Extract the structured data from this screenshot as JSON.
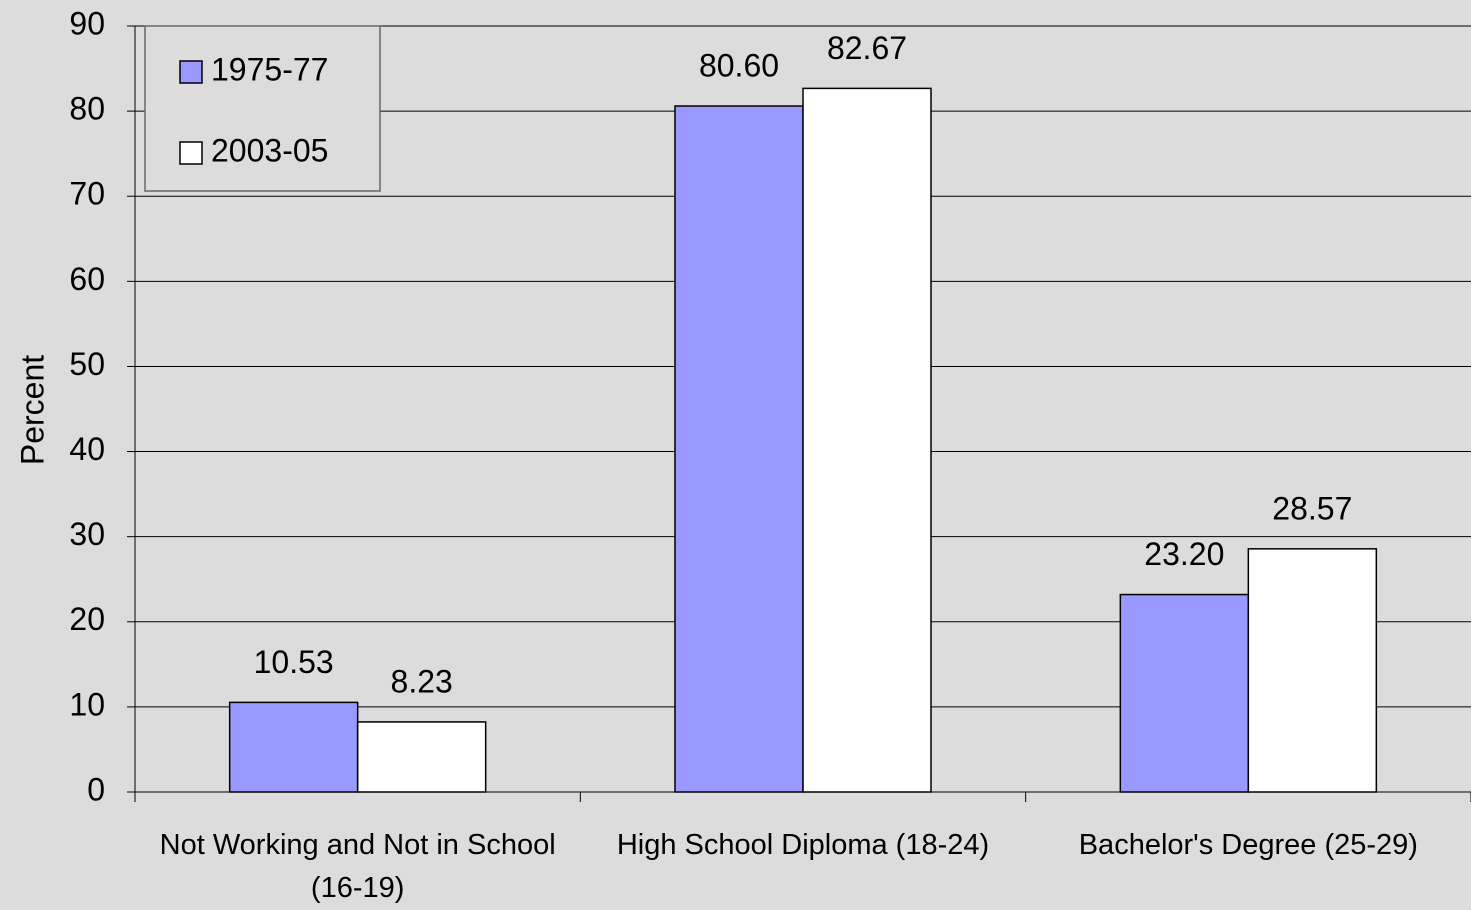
{
  "chart_data": {
    "type": "bar",
    "categories": [
      "Not Working and Not in School (16-19)",
      "High School Diploma (18-24)",
      "Bachelor's Degree (25-29)"
    ],
    "series": [
      {
        "name": "1975-77",
        "color": "#9999ff",
        "values": [
          10.53,
          80.6,
          23.2
        ],
        "value_labels": [
          "10.53",
          "80.60",
          "23.20"
        ]
      },
      {
        "name": "2003-05",
        "color": "#ffffff",
        "values": [
          8.23,
          82.67,
          28.57
        ],
        "value_labels": [
          "8.23",
          "82.67",
          "28.57"
        ]
      }
    ],
    "y_label": "Percent",
    "ylim": [
      0,
      90
    ],
    "yticks": [
      0,
      10,
      20,
      30,
      40,
      50,
      60,
      70,
      80,
      90
    ],
    "grid": true,
    "legend": "upper left"
  }
}
